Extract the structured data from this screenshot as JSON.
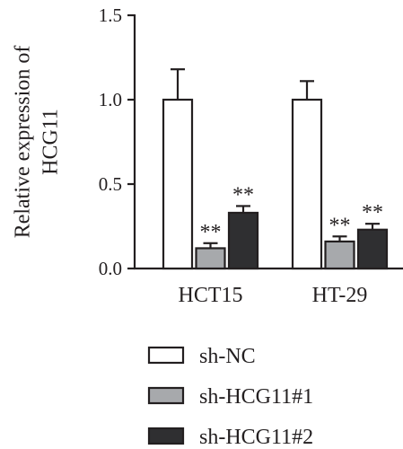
{
  "chart_data": {
    "type": "bar",
    "title": "",
    "ylabel": "Relative expression of HCG11",
    "ylabel_lines": [
      "Relative expression of",
      "HCG11"
    ],
    "xlabel": "",
    "ylim": [
      0,
      1.5
    ],
    "yticks": [
      "0.0",
      "0.5",
      "1.0",
      "1.5"
    ],
    "ytick_values": [
      0,
      0.5,
      1.0,
      1.5
    ],
    "categories": [
      "HCT15",
      "HT-29"
    ],
    "series": [
      {
        "name": "sh-NC",
        "color": "#ffffff",
        "values": [
          1.0,
          1.0
        ],
        "errors": [
          0.18,
          0.11
        ],
        "significance": [
          "",
          ""
        ]
      },
      {
        "name": "sh-HCG11#1",
        "color": "#a7a9ac",
        "values": [
          0.12,
          0.16
        ],
        "errors": [
          0.03,
          0.03
        ],
        "significance": [
          "**",
          "**"
        ]
      },
      {
        "name": "sh-HCG11#2",
        "color": "#2f2f31",
        "values": [
          0.33,
          0.23
        ],
        "errors": [
          0.04,
          0.035
        ],
        "significance": [
          "**",
          "**"
        ]
      }
    ],
    "grid": false,
    "legend_position": "bottom"
  }
}
